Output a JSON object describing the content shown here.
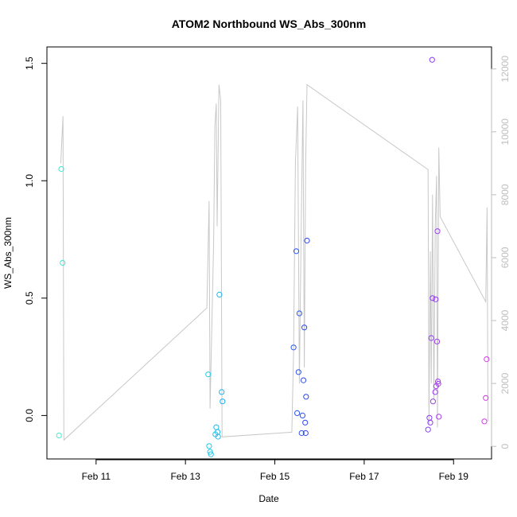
{
  "chart_data": {
    "type": "scatter",
    "title": "ATOM2 Northbound WS_Abs_300nm",
    "xlabel": "Date",
    "ylabel": "WS_Abs_300nm",
    "x_unit": "days in February",
    "xlim": [
      9.9,
      19.85
    ],
    "ylim": [
      -0.185,
      1.57
    ],
    "x_ticks": [
      {
        "value": 11,
        "label": "Feb 11"
      },
      {
        "value": 13,
        "label": "Feb 13"
      },
      {
        "value": 15,
        "label": "Feb 15"
      },
      {
        "value": 17,
        "label": "Feb 17"
      },
      {
        "value": 19,
        "label": "Feb 19"
      }
    ],
    "y_ticks": [
      {
        "value": 0.0,
        "label": "0.0"
      },
      {
        "value": 0.5,
        "label": "0.5"
      },
      {
        "value": 1.0,
        "label": "1.0"
      },
      {
        "value": 1.5,
        "label": "1.5"
      }
    ],
    "y2_ticks": [
      {
        "value": 0,
        "label": "0"
      },
      {
        "value": 2000,
        "label": "2000"
      },
      {
        "value": 4000,
        "label": "4000"
      },
      {
        "value": 6000,
        "label": "6000"
      },
      {
        "value": 8000,
        "label": "8000"
      },
      {
        "value": 10000,
        "label": "10000"
      },
      {
        "value": 12000,
        "label": "12000"
      }
    ],
    "y2lim": [
      -400,
      12700
    ],
    "points": [
      {
        "x": 10.17,
        "y": -0.085,
        "color": "#3cf0cf"
      },
      {
        "x": 10.22,
        "y": 1.05,
        "color": "#3ce8d0"
      },
      {
        "x": 10.25,
        "y": 0.65,
        "color": "#3ce6d2"
      },
      {
        "x": 13.51,
        "y": 0.175,
        "color": "#22cde4"
      },
      {
        "x": 13.53,
        "y": -0.13,
        "color": "#20cbe6"
      },
      {
        "x": 13.55,
        "y": -0.155,
        "color": "#1fc9e6"
      },
      {
        "x": 13.57,
        "y": -0.165,
        "color": "#1ec6e8"
      },
      {
        "x": 13.67,
        "y": -0.08,
        "color": "#1dc0ea"
      },
      {
        "x": 13.69,
        "y": -0.05,
        "color": "#1dbeec"
      },
      {
        "x": 13.72,
        "y": -0.07,
        "color": "#1cbcec"
      },
      {
        "x": 13.73,
        "y": -0.09,
        "color": "#1cbaee"
      },
      {
        "x": 13.76,
        "y": 0.515,
        "color": "#1bb8ee"
      },
      {
        "x": 13.81,
        "y": 0.1,
        "color": "#1ab4f0"
      },
      {
        "x": 13.83,
        "y": 0.06,
        "color": "#1ab2f0"
      },
      {
        "x": 15.42,
        "y": 0.29,
        "color": "#2a5cf0"
      },
      {
        "x": 15.48,
        "y": 0.7,
        "color": "#2a58f0"
      },
      {
        "x": 15.5,
        "y": 0.01,
        "color": "#2a56f0"
      },
      {
        "x": 15.53,
        "y": 0.185,
        "color": "#2b54f0"
      },
      {
        "x": 15.55,
        "y": 0.435,
        "color": "#2b52f0"
      },
      {
        "x": 15.6,
        "y": -0.075,
        "color": "#2c50f0"
      },
      {
        "x": 15.62,
        "y": 0.0,
        "color": "#2c4ef0"
      },
      {
        "x": 15.64,
        "y": 0.15,
        "color": "#2c4cf0"
      },
      {
        "x": 15.66,
        "y": 0.375,
        "color": "#2d4af0"
      },
      {
        "x": 15.68,
        "y": -0.03,
        "color": "#2d48f0"
      },
      {
        "x": 15.69,
        "y": -0.075,
        "color": "#2d46f0"
      },
      {
        "x": 15.7,
        "y": 0.08,
        "color": "#2d44f0"
      },
      {
        "x": 15.72,
        "y": 0.745,
        "color": "#2e42f0"
      },
      {
        "x": 18.43,
        "y": -0.06,
        "color": "#8a3cf0"
      },
      {
        "x": 18.46,
        "y": -0.01,
        "color": "#8c3cf0"
      },
      {
        "x": 18.48,
        "y": -0.03,
        "color": "#8e3cf0"
      },
      {
        "x": 18.5,
        "y": 0.33,
        "color": "#903cf0"
      },
      {
        "x": 18.52,
        "y": 1.515,
        "color": "#923cf0"
      },
      {
        "x": 18.53,
        "y": 0.5,
        "color": "#943cf0"
      },
      {
        "x": 18.54,
        "y": 0.06,
        "color": "#963cf0"
      },
      {
        "x": 18.59,
        "y": 0.1,
        "color": "#9a3cf0"
      },
      {
        "x": 18.6,
        "y": 0.495,
        "color": "#9c3cf0"
      },
      {
        "x": 18.61,
        "y": 0.125,
        "color": "#9e3cf0"
      },
      {
        "x": 18.63,
        "y": 0.315,
        "color": "#a03cf0"
      },
      {
        "x": 18.64,
        "y": 0.785,
        "color": "#a23cf0"
      },
      {
        "x": 18.65,
        "y": 0.145,
        "color": "#a43cf0"
      },
      {
        "x": 18.66,
        "y": 0.135,
        "color": "#a63cf0"
      },
      {
        "x": 18.67,
        "y": -0.005,
        "color": "#a83cf0"
      },
      {
        "x": 19.69,
        "y": -0.025,
        "color": "#d03ce6"
      },
      {
        "x": 19.72,
        "y": 0.075,
        "color": "#d23ce6"
      },
      {
        "x": 19.74,
        "y": 0.24,
        "color": "#d43ce6"
      }
    ],
    "secondary_series": {
      "name": "grey secondary line",
      "axis": "right",
      "color": "#c8c8c8",
      "points": [
        {
          "x": 10.21,
          "y2": 9000
        },
        {
          "x": 10.26,
          "y2": 10500
        },
        {
          "x": 10.28,
          "y2": 200
        },
        {
          "x": 13.48,
          "y2": 4400
        },
        {
          "x": 13.53,
          "y2": 7800
        },
        {
          "x": 13.55,
          "y2": 1200
        },
        {
          "x": 13.63,
          "y2": 6500
        },
        {
          "x": 13.66,
          "y2": 10200
        },
        {
          "x": 13.69,
          "y2": 10900
        },
        {
          "x": 13.71,
          "y2": 7000
        },
        {
          "x": 13.75,
          "y2": 11500
        },
        {
          "x": 13.79,
          "y2": 11000
        },
        {
          "x": 13.82,
          "y2": 300
        },
        {
          "x": 15.38,
          "y2": 450
        },
        {
          "x": 15.42,
          "y2": 3000
        },
        {
          "x": 15.46,
          "y2": 9000
        },
        {
          "x": 15.51,
          "y2": 10800
        },
        {
          "x": 15.55,
          "y2": 2000
        },
        {
          "x": 15.59,
          "y2": 7000
        },
        {
          "x": 15.63,
          "y2": 11000
        },
        {
          "x": 15.66,
          "y2": 2500
        },
        {
          "x": 15.69,
          "y2": 9000
        },
        {
          "x": 15.72,
          "y2": 11500
        },
        {
          "x": 18.43,
          "y2": 8800
        },
        {
          "x": 18.45,
          "y2": 700
        },
        {
          "x": 18.48,
          "y2": 6200
        },
        {
          "x": 18.5,
          "y2": 2000
        },
        {
          "x": 18.53,
          "y2": 8000
        },
        {
          "x": 18.56,
          "y2": 1500
        },
        {
          "x": 18.59,
          "y2": 7000
        },
        {
          "x": 18.62,
          "y2": 8600
        },
        {
          "x": 18.64,
          "y2": 600
        },
        {
          "x": 18.67,
          "y2": 9500
        },
        {
          "x": 18.7,
          "y2": 7300
        },
        {
          "x": 19.72,
          "y2": 4600
        },
        {
          "x": 19.75,
          "y2": 7600
        },
        {
          "x": 19.77,
          "y2": 800
        }
      ]
    }
  }
}
